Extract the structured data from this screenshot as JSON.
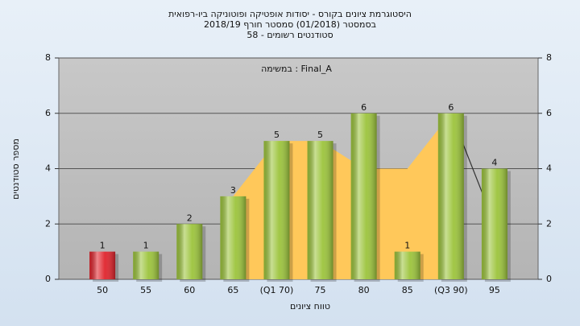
{
  "chart_data": {
    "type": "bar",
    "title": "היסטוגרמת ציונים בקורס - יסודות אופטיקה ופוטוניקה ביו-רפואית",
    "subtitle": "בסמסטר (01/2018) סמסטר חורף 2018/19",
    "subtitle2": "סטודנטים רשומים - 58",
    "annotation": "במשימה : Final_A",
    "x_label": "טווח ציונים",
    "y_label": "מספר סטודנטים",
    "categories": [
      "50",
      "55",
      "60",
      "65",
      "(Q1 70)",
      "75",
      "80",
      "85",
      "(Q3 90)",
      "95"
    ],
    "series": [
      {
        "type": "area",
        "color": "#ffc85a",
        "values": [
          null,
          null,
          null,
          3,
          5,
          5,
          4,
          4,
          6,
          null
        ]
      },
      {
        "type": "line",
        "color": "#333333",
        "values": [
          null,
          null,
          null,
          null,
          null,
          null,
          null,
          null,
          6,
          2
        ]
      },
      {
        "type": "bar",
        "colors": [
          "#e0242c",
          "#9cc43c",
          "#9cc43c",
          "#9cc43c",
          "#9cc43c",
          "#9cc43c",
          "#9cc43c",
          "#9cc43c",
          "#9cc43c",
          "#9cc43c"
        ],
        "values": [
          1,
          1,
          2,
          3,
          5,
          5,
          6,
          1,
          6,
          4
        ]
      }
    ],
    "ylim": [
      0,
      8
    ],
    "yticks": [
      0,
      2,
      4,
      6,
      8
    ],
    "y2lim": [
      0,
      8
    ],
    "y2ticks": [
      0,
      2,
      4,
      6,
      8
    ],
    "grid": true
  }
}
